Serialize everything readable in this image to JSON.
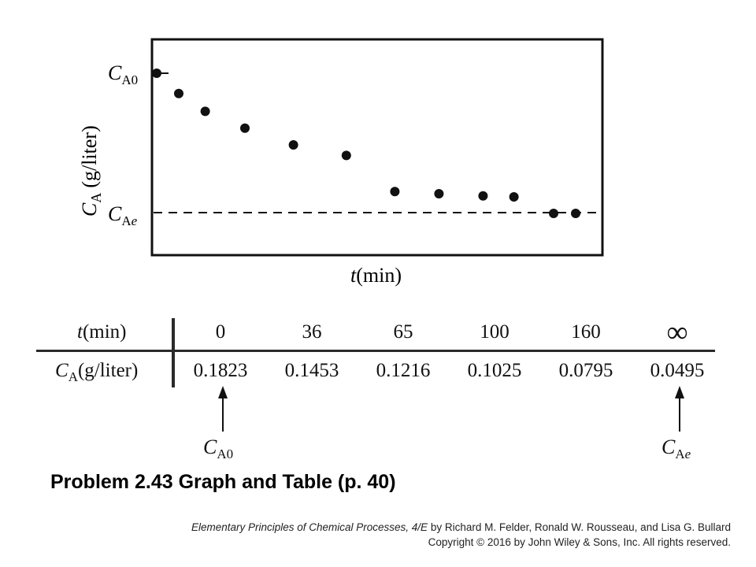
{
  "chart_data": [
    {
      "type": "scatter",
      "xlabel_var": "t",
      "xlabel_unit": "(min)",
      "ylabel_var": "C",
      "ylabel_sub": "A",
      "ylabel_unit": "(g/liter)",
      "y_ticks": [
        {
          "main": "C",
          "sub": "A0"
        },
        {
          "main": "C",
          "sub": "Ae"
        }
      ],
      "reference_line": {
        "label": "C_Ae",
        "style": "dashed",
        "value": 0.0495
      },
      "series": [
        {
          "points": [
            {
              "t": 0,
              "c": 0.1823
            },
            {
              "t": 5,
              "c": 0.163
            },
            {
              "t": 11,
              "c": 0.146
            },
            {
              "t": 20,
              "c": 0.13
            },
            {
              "t": 31,
              "c": 0.114
            },
            {
              "t": 43,
              "c": 0.104
            },
            {
              "t": 54,
              "c": 0.0695
            },
            {
              "t": 64,
              "c": 0.0675
            },
            {
              "t": 74,
              "c": 0.0655
            },
            {
              "t": 81,
              "c": 0.0645
            },
            {
              "t": 90,
              "c": 0.0495
            },
            {
              "t": 95,
              "c": 0.0495
            }
          ]
        }
      ],
      "grid": false
    },
    {
      "type": "table",
      "row_headers": [
        {
          "var": "t",
          "unit": "(min)"
        },
        {
          "var": "C",
          "sub": "A",
          "unit": "(g/liter)"
        }
      ],
      "t_values": [
        "0",
        "36",
        "65",
        "100",
        "160",
        "∞"
      ],
      "c_values": [
        "0.1823",
        "0.1453",
        "0.1216",
        "0.1025",
        "0.0795",
        "0.0495"
      ],
      "annotations": [
        {
          "main": "C",
          "sub": "A0",
          "column": 0
        },
        {
          "main": "C",
          "sub": "Ae",
          "column": 5
        }
      ]
    }
  ],
  "footer": {
    "title": "Problem 2.43 Graph and Table (p. 40)",
    "book_title": "Elementary Principles of Chemical Processes, 4/E",
    "book_authors": " by Richard M. Felder, Ronald W. Rousseau, and Lisa G. Bullard",
    "copyright": "Copyright © 2016 by John Wiley & Sons, Inc.  All rights reserved."
  }
}
